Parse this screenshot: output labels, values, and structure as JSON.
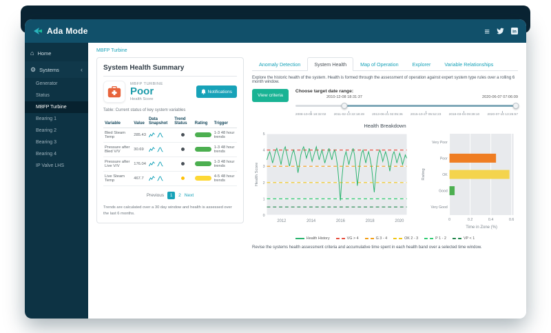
{
  "navbar": {
    "brand": "Ada Mode"
  },
  "sidebar": {
    "home_label": "Home",
    "systems_label": "Systems",
    "subitems": [
      "Generator",
      "Status",
      "MBFP Turbine",
      "Bearing 1",
      "Bearing 2",
      "Bearing 3",
      "Bearing 4",
      "IP Valve LHS"
    ],
    "active_item": "MBFP Turbine"
  },
  "content": {
    "breadcrumb": "MBFP Turbine"
  },
  "summary": {
    "title": "System Health Summary",
    "asset_label": "MBFP TURBINE",
    "health_score": "Poor",
    "health_score_label": "Health Score",
    "notifications_label": "Notifications",
    "table_caption": "Table: Current status of key system variables",
    "table": {
      "headers": [
        "Variable",
        "Value",
        "Data Snapshot",
        "Trend Status",
        "Rating",
        "Trigger"
      ],
      "rows": [
        {
          "variable": "Bled Steam Temp",
          "value": "285.43",
          "trend_status": "ok",
          "rating": "good",
          "trigger": "1-3 48 hour trends"
        },
        {
          "variable": "Pressure after Bled V/V",
          "value": "30.69",
          "trend_status": "ok",
          "rating": "good",
          "trigger": "1-3 48 hour trends"
        },
        {
          "variable": "Pressure after Live V/V",
          "value": "176.04",
          "trend_status": "ok",
          "rating": "good",
          "trigger": "1-3 48 hour trends"
        },
        {
          "variable": "Live Steam Temp",
          "value": "467.7",
          "trend_status": "warning",
          "rating": "warning",
          "trigger": "4-5 48 hour trends"
        }
      ]
    },
    "pagination": {
      "previous": "Previous",
      "page1": "1",
      "page2": "2",
      "next": "Next"
    },
    "footnote": "Trends are calculated over a 30 day window and health is assessed over the last 6 months."
  },
  "tabs": [
    {
      "label": "Anomaly Detection",
      "active": false
    },
    {
      "label": "System Health",
      "active": true
    },
    {
      "label": "Map of Operation",
      "active": false
    },
    {
      "label": "Explorer",
      "active": false
    },
    {
      "label": "Variable Relationships",
      "active": false
    }
  ],
  "health_tab": {
    "description": "Explore the historic health of the system. Health is formed through the assessment of operation against expert system type rules over a rolling 6 month window.",
    "view_criteria_label": "View criteria",
    "date_range_label": "Choose target date range:",
    "range_start": "2010-12-08 18:31:37",
    "range_end": "2020-06-07 07:06:09",
    "slider_ticks": [
      "2008-10-08 18:32:02",
      "2011-02-13 22:18:49",
      "2013-06-21 02:05:36",
      "2015-10-27 05:52:23",
      "2018-03-04 09:39:10",
      "2020-07-10 13:25:57"
    ],
    "footer": "Revise the systems health assessment criteria and accumulative time spent in each health band over a selected time window."
  },
  "chart_data": {
    "type": "line+bar",
    "title": "Health Breakdown",
    "line": {
      "ylabel": "Health Score",
      "series_name": "Health History",
      "x_range": [
        2011,
        2020.5
      ],
      "y_range": [
        0,
        5
      ],
      "x_ticks": [
        2012,
        2014,
        2016,
        2018,
        2020
      ],
      "y_ticks": [
        0,
        1,
        2,
        3,
        4,
        5
      ],
      "values": [
        3.4,
        3.7,
        3.9,
        3.6,
        3.2,
        3.5,
        3.9,
        4.1,
        3.8,
        3.5,
        3.1,
        3.6,
        4.0,
        4.2,
        3.8,
        3.4,
        3.0,
        3.4,
        3.8,
        4.0,
        3.6,
        3.2,
        2.6,
        3.1,
        3.7,
        4.0,
        4.2,
        3.9,
        3.5,
        3.8,
        4.1,
        3.7,
        3.3,
        3.6,
        3.9,
        4.2,
        3.8,
        3.4,
        3.7,
        4.0,
        3.6,
        3.2,
        3.5,
        3.8,
        4.1,
        3.7,
        3.4,
        3.8,
        4.0,
        3.6,
        3.0,
        2.0,
        0.9,
        2.2,
        3.1,
        3.6,
        3.9,
        3.5,
        3.1,
        3.5,
        3.8,
        4.1,
        3.7,
        2.8,
        1.8,
        2.6,
        3.3,
        3.8,
        4.0,
        3.6,
        3.2,
        3.6,
        3.9,
        3.5,
        3.0,
        2.2,
        1.4,
        2.5,
        3.3,
        3.8,
        4.0,
        3.7,
        3.3,
        3.6,
        3.9,
        3.6,
        3.2,
        2.7,
        3.2,
        3.7,
        3.9,
        3.6,
        3.2,
        3.5,
        3.8,
        3.5,
        3.1,
        3.4,
        3.7,
        3.5
      ],
      "thresholds": [
        {
          "label": "VG > 4",
          "value": 4,
          "color": "#e74c3c"
        },
        {
          "label": "G 3 - 4",
          "value": 3,
          "color": "#f39c12"
        },
        {
          "label": "OK 2 - 3",
          "value": 2,
          "color": "#f1c40f"
        },
        {
          "label": "P 1 - 2",
          "value": 1,
          "color": "#2ecc71"
        },
        {
          "label": "VP < 1",
          "value": 0.5,
          "color": "#1e8449"
        }
      ]
    },
    "bars": {
      "xlabel": "Time in Zone (%)",
      "ylabel": "Rating",
      "categories": [
        "Very Poor",
        "Poor",
        "OK",
        "Good",
        "Very Good"
      ],
      "values": [
        0,
        0.45,
        0.58,
        0.05,
        0
      ],
      "colors": [
        "#e74c3c",
        "#ef7d22",
        "#f4d44d",
        "#4caf50",
        "#1e8449"
      ],
      "x_ticks": [
        0,
        0.2,
        0.4,
        0.6
      ],
      "x_range": [
        0,
        0.62
      ]
    }
  }
}
